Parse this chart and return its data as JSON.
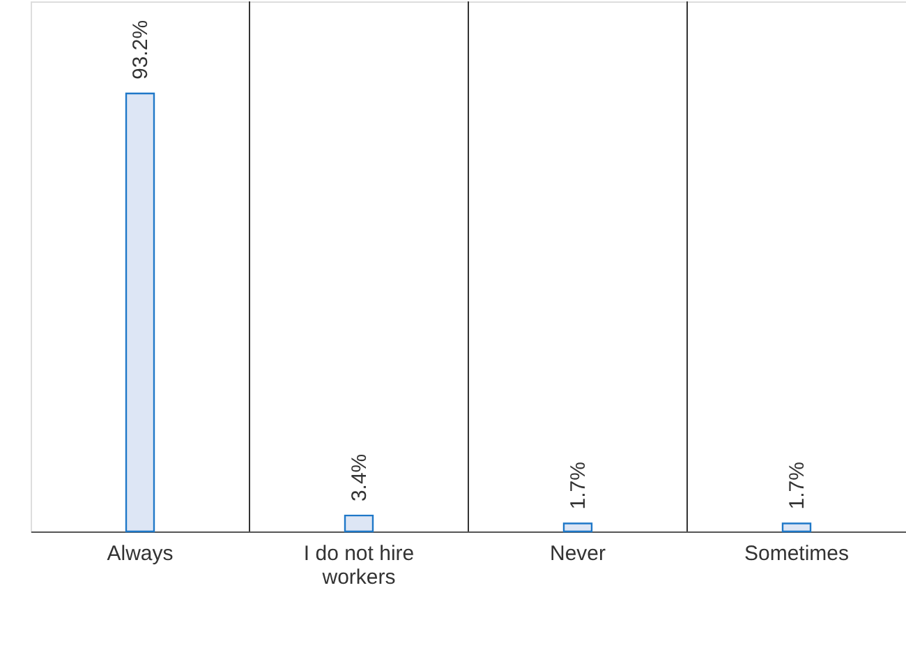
{
  "chart_data": {
    "type": "bar",
    "categories": [
      "Always",
      "I do not hire workers",
      "Never",
      "Sometimes"
    ],
    "values": [
      93.2,
      3.4,
      1.7,
      1.7
    ],
    "value_labels": [
      "93.2%",
      "3.4%",
      "1.7%",
      "1.7%"
    ],
    "color": "#dde6f5",
    "grid": "x"
  }
}
